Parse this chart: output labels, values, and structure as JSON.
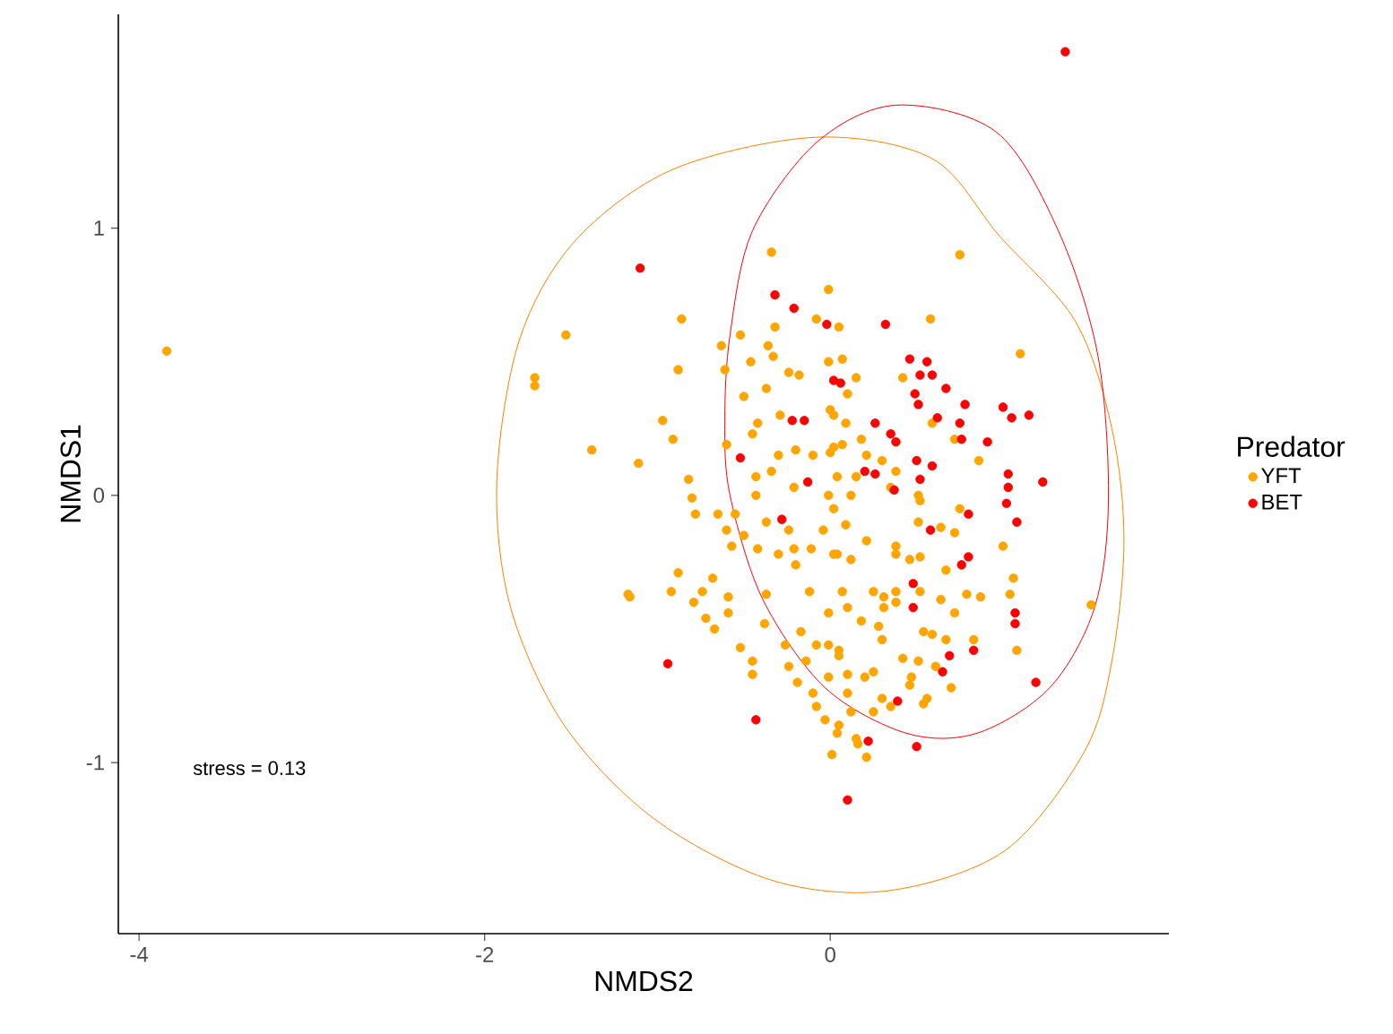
{
  "chart_data": {
    "type": "scatter",
    "xlabel": "NMDS2",
    "ylabel": "NMDS1",
    "legend_title": "Predator",
    "legend": "right",
    "marker": "circle",
    "grid": false,
    "xlim": [
      -4.12,
      1.96
    ],
    "ylim": [
      -1.64,
      1.8
    ],
    "xticks": [
      -4,
      -2,
      0
    ],
    "yticks": [
      -1,
      0,
      1
    ],
    "annotations": [
      "stress = 0.13"
    ],
    "series": [
      {
        "name": "YFT",
        "color": "#ffa500",
        "x": [
          -3.84,
          -1.71,
          -1.71,
          -1.53,
          -1.38,
          -1.17,
          -1.11,
          1.51,
          1.1,
          0.75,
          -0.34,
          -0.86,
          -0.88,
          -0.97,
          -0.91,
          -0.63,
          -0.52,
          -0.36,
          -0.32,
          -0.61,
          -0.46,
          -0.33,
          -0.24,
          -0.5,
          -0.37,
          -0.42,
          -0.45,
          -0.6,
          -0.3,
          -0.2,
          -0.34,
          -0.43,
          -0.43,
          -0.21,
          -0.82,
          -0.8,
          -0.78,
          -0.65,
          -0.55,
          -0.6,
          -0.5,
          -0.57,
          -0.42,
          -0.3,
          -0.21,
          -0.2,
          -0.37,
          -0.24,
          -0.88,
          -0.92,
          -1.16,
          -0.68,
          -0.74,
          -0.79,
          -0.59,
          -0.59,
          -0.72,
          -0.67,
          -0.37,
          -0.38,
          -0.12,
          -0.52,
          -0.45,
          -0.45,
          -0.26,
          -0.17,
          -0.08,
          -0.24,
          -0.14,
          -0.19,
          -0.1,
          -0.08,
          -0.03,
          0.04,
          0.01,
          -0.01,
          -0.01,
          -0.01,
          -0.04,
          0.02,
          -0.01,
          0.04,
          0.02,
          0.0,
          -0.01,
          -0.01,
          -0.08,
          -0.1,
          -0.29,
          -0.18,
          -0.11,
          0.58,
          0.05,
          0.07,
          0.15,
          0.1,
          0.42,
          0.02,
          0.09,
          0.18,
          0.07,
          0.0,
          0.21,
          0.3,
          0.38,
          0.59,
          0.72,
          0.86,
          0.15,
          0.12,
          0.35,
          0.51,
          0.02,
          0.09,
          0.52,
          0.51,
          0.75,
          0.64,
          0.72,
          0.21,
          0.38,
          0.38,
          0.04,
          0.12,
          0.46,
          0.52,
          0.67,
          1.0,
          1.06,
          1.04,
          1.08,
          0.07,
          0.25,
          0.31,
          0.38,
          0.1,
          0.18,
          0.31,
          0.38,
          0.52,
          0.64,
          0.72,
          0.79,
          0.87,
          0.28,
          0.3,
          0.54,
          0.59,
          0.67,
          0.83,
          0.05,
          0.05,
          0.42,
          0.51,
          0.61,
          0.1,
          0.2,
          0.25,
          0.47,
          0.46,
          0.7,
          0.1,
          0.3,
          0.35,
          0.56,
          0.54,
          0.12,
          0.25,
          0.05,
          0.15,
          0.16,
          0.21
        ],
        "values": [
          0.54,
          0.44,
          0.41,
          0.6,
          0.17,
          -0.37,
          0.12,
          -0.41,
          0.53,
          0.9,
          0.91,
          0.66,
          0.47,
          0.28,
          0.21,
          0.56,
          0.6,
          0.56,
          0.63,
          0.47,
          0.5,
          0.52,
          0.46,
          0.37,
          0.4,
          0.27,
          0.23,
          0.19,
          0.15,
          0.17,
          0.09,
          0.07,
          0.0,
          0.03,
          0.06,
          -0.01,
          -0.07,
          -0.07,
          -0.07,
          -0.13,
          -0.15,
          -0.19,
          -0.2,
          -0.22,
          -0.2,
          -0.26,
          -0.1,
          -0.13,
          -0.29,
          -0.36,
          -0.38,
          -0.31,
          -0.36,
          -0.4,
          -0.38,
          -0.44,
          -0.46,
          -0.5,
          -0.37,
          -0.48,
          -0.36,
          -0.57,
          -0.62,
          -0.67,
          -0.56,
          -0.51,
          -0.56,
          -0.64,
          -0.62,
          -0.7,
          -0.74,
          -0.79,
          -0.84,
          -0.89,
          -0.97,
          -0.68,
          -0.56,
          -0.44,
          -0.13,
          -0.22,
          0.0,
          0.07,
          0.18,
          0.32,
          0.5,
          0.77,
          0.66,
          0.15,
          0.3,
          0.45,
          -0.2,
          0.66,
          0.63,
          0.51,
          0.44,
          0.38,
          0.44,
          0.3,
          0.27,
          0.21,
          0.19,
          0.16,
          0.15,
          0.13,
          0.09,
          0.27,
          0.21,
          0.13,
          0.07,
          0.0,
          0.03,
          0.0,
          -0.05,
          -0.11,
          -0.02,
          -0.1,
          -0.05,
          -0.12,
          -0.14,
          -0.17,
          -0.19,
          -0.22,
          -0.22,
          -0.24,
          -0.24,
          -0.23,
          -0.28,
          -0.19,
          -0.31,
          -0.37,
          -0.58,
          -0.36,
          -0.36,
          -0.38,
          -0.36,
          -0.42,
          -0.47,
          -0.42,
          -0.4,
          -0.36,
          -0.39,
          -0.44,
          -0.37,
          -0.38,
          -0.49,
          -0.54,
          -0.51,
          -0.52,
          -0.54,
          -0.54,
          -0.58,
          -0.6,
          -0.61,
          -0.62,
          -0.64,
          -0.67,
          -0.68,
          -0.66,
          -0.68,
          -0.71,
          -0.72,
          -0.74,
          -0.76,
          -0.79,
          -0.76,
          -0.78,
          -0.81,
          -0.81,
          -0.86,
          -0.91,
          -0.93,
          -0.98
        ]
      },
      {
        "name": "BET",
        "color": "#ff0000",
        "x": [
          -1.1,
          1.36,
          -0.94,
          -0.43,
          0.22,
          0.1,
          -0.32,
          -0.21,
          -0.02,
          0.02,
          0.06,
          -0.52,
          -0.13,
          -0.28,
          0.32,
          1.19,
          0.46,
          0.56,
          0.52,
          0.59,
          0.67,
          0.49,
          0.51,
          0.78,
          0.26,
          0.35,
          0.38,
          0.62,
          0.75,
          0.76,
          0.91,
          1.0,
          1.05,
          1.15,
          0.5,
          0.59,
          0.52,
          0.2,
          0.26,
          0.37,
          1.03,
          1.03,
          1.02,
          1.23,
          0.8,
          1.08,
          0.58,
          0.8,
          0.76,
          0.48,
          0.48,
          1.07,
          1.07,
          0.83,
          0.69,
          0.65,
          0.39,
          0.5,
          -0.22,
          -0.15
        ],
        "values": [
          0.85,
          1.66,
          -0.63,
          -0.84,
          -0.92,
          -1.14,
          0.75,
          0.7,
          0.64,
          0.43,
          0.42,
          0.14,
          0.05,
          -0.09,
          0.64,
          -0.7,
          0.51,
          0.5,
          0.45,
          0.45,
          0.4,
          0.38,
          0.34,
          0.34,
          0.27,
          0.23,
          0.2,
          0.29,
          0.27,
          0.21,
          0.2,
          0.33,
          0.29,
          0.3,
          0.13,
          0.11,
          0.06,
          0.09,
          0.08,
          0.02,
          0.08,
          0.03,
          -0.03,
          0.05,
          -0.07,
          -0.1,
          -0.13,
          -0.23,
          -0.26,
          -0.33,
          -0.42,
          -0.44,
          -0.48,
          -0.58,
          -0.6,
          -0.66,
          -0.77,
          -0.94,
          0.28,
          0.28
        ]
      }
    ]
  }
}
